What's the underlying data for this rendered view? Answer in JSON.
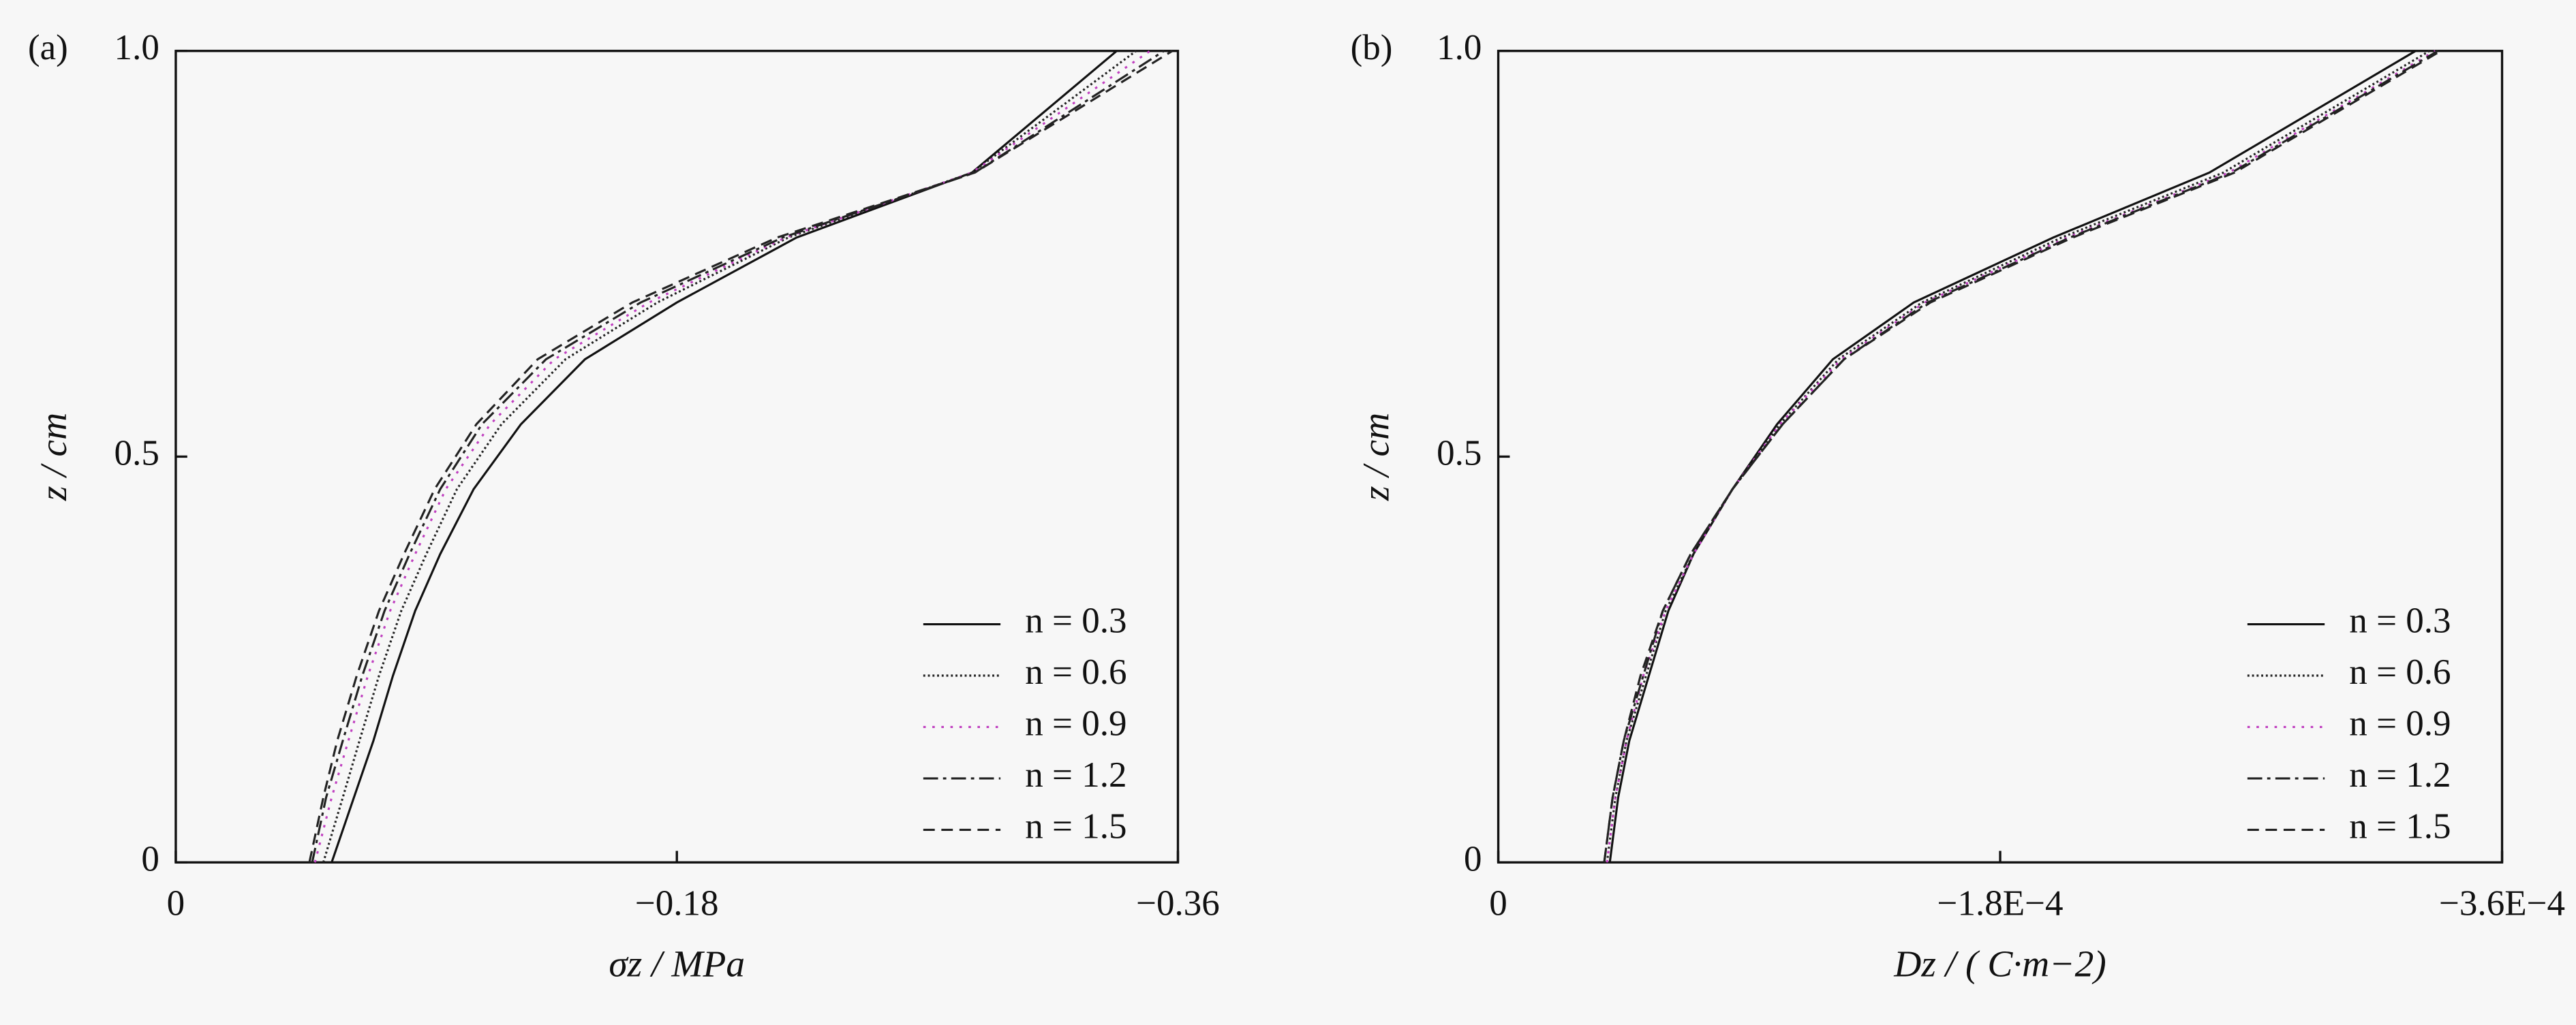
{
  "chart_data": [
    {
      "type": "line",
      "panel_label": "(a)",
      "x_label": "σz / MPa",
      "y_label": "z / cm",
      "xlim": [
        0,
        -0.36
      ],
      "xticks": [
        0,
        {
          "value": -0.18,
          "label": "−0.18"
        },
        {
          "value": -0.36,
          "label": "−0.36"
        }
      ],
      "ylim": [
        0,
        1
      ],
      "yticks": [
        0,
        0.5,
        {
          "value": 1,
          "label": "1.0"
        }
      ],
      "legend": "lower right",
      "y": [
        0,
        0.08,
        0.15,
        0.23,
        0.31,
        0.38,
        0.46,
        0.54,
        0.62,
        0.69,
        0.77,
        0.85,
        1.0
      ],
      "series": [
        {
          "name": "n = 0.3",
          "color": "#111111",
          "style": "solid",
          "values": [
            -0.056,
            -0.064,
            -0.071,
            -0.078,
            -0.086,
            -0.095,
            -0.107,
            -0.124,
            -0.147,
            -0.18,
            -0.223,
            -0.286,
            -0.338
          ]
        },
        {
          "name": "n = 0.6",
          "color": "#222222",
          "style": "dotted",
          "values": [
            -0.053,
            -0.06,
            -0.066,
            -0.073,
            -0.081,
            -0.09,
            -0.101,
            -0.117,
            -0.14,
            -0.173,
            -0.22,
            -0.286,
            -0.345
          ]
        },
        {
          "name": "n = 0.9",
          "color": "#c040c0",
          "style": "sparse-dotted",
          "values": [
            -0.05,
            -0.056,
            -0.062,
            -0.069,
            -0.077,
            -0.086,
            -0.097,
            -0.113,
            -0.136,
            -0.17,
            -0.219,
            -0.286,
            -0.35
          ]
        },
        {
          "name": "n = 1.2",
          "color": "#222222",
          "style": "dash-dot",
          "values": [
            -0.049,
            -0.054,
            -0.06,
            -0.067,
            -0.075,
            -0.084,
            -0.095,
            -0.11,
            -0.133,
            -0.167,
            -0.218,
            -0.287,
            -0.355
          ]
        },
        {
          "name": "n = 1.5",
          "color": "#222222",
          "style": "dashed",
          "values": [
            -0.048,
            -0.053,
            -0.058,
            -0.065,
            -0.073,
            -0.082,
            -0.093,
            -0.108,
            -0.13,
            -0.164,
            -0.216,
            -0.287,
            -0.358
          ]
        }
      ]
    },
    {
      "type": "line",
      "panel_label": "(b)",
      "x_label": "Dz / ( C·m−2)",
      "y_label": "z / cm",
      "xlim": [
        0,
        -0.00036
      ],
      "xticks": [
        0,
        {
          "value": -0.00018,
          "label": "−1.8E−4"
        },
        {
          "value": -0.00036,
          "label": "−3.6E−4"
        }
      ],
      "ylim": [
        0,
        1
      ],
      "yticks": [
        0,
        0.5,
        {
          "value": 1,
          "label": "1.0"
        }
      ],
      "legend": "lower right",
      "y": [
        0,
        0.08,
        0.15,
        0.23,
        0.31,
        0.38,
        0.46,
        0.54,
        0.62,
        0.69,
        0.77,
        0.85,
        1.0
      ],
      "series": [
        {
          "name": "n = 0.3",
          "color": "#111111",
          "style": "solid",
          "values": [
            -4e-05,
            -4.3e-05,
            -4.7e-05,
            -5.4e-05,
            -6.1e-05,
            -7e-05,
            -8.4e-05,
            -0.0001,
            -0.00012,
            -0.000149,
            -0.000199,
            -0.000255,
            -0.000329
          ]
        },
        {
          "name": "n = 0.6",
          "color": "#222222",
          "style": "dotted",
          "values": [
            -3.9e-05,
            -4.2e-05,
            -4.6e-05,
            -5.3e-05,
            -6e-05,
            -7e-05,
            -8.4e-05,
            -0.000101,
            -0.000122,
            -0.000152,
            -0.000202,
            -0.00026,
            -0.000334
          ]
        },
        {
          "name": "n = 0.9",
          "color": "#c040c0",
          "style": "sparse-dotted",
          "values": [
            -3.9e-05,
            -4.2e-05,
            -4.6e-05,
            -5.2e-05,
            -6e-05,
            -7e-05,
            -8.4e-05,
            -0.000101,
            -0.000123,
            -0.000153,
            -0.000204,
            -0.000262,
            -0.000336
          ]
        },
        {
          "name": "n = 1.2",
          "color": "#222222",
          "style": "dash-dot",
          "values": [
            -3.8e-05,
            -4.1e-05,
            -4.5e-05,
            -5.2e-05,
            -5.9e-05,
            -6.9e-05,
            -8.4e-05,
            -0.000102,
            -0.000124,
            -0.000154,
            -0.000205,
            -0.000263,
            -0.000337
          ]
        },
        {
          "name": "n = 1.5",
          "color": "#222222",
          "style": "dashed",
          "values": [
            -3.8e-05,
            -4.1e-05,
            -4.5e-05,
            -5.1e-05,
            -5.9e-05,
            -6.9e-05,
            -8.4e-05,
            -0.000102,
            -0.000124,
            -0.000155,
            -0.000206,
            -0.000264,
            -0.000338
          ]
        }
      ]
    }
  ]
}
